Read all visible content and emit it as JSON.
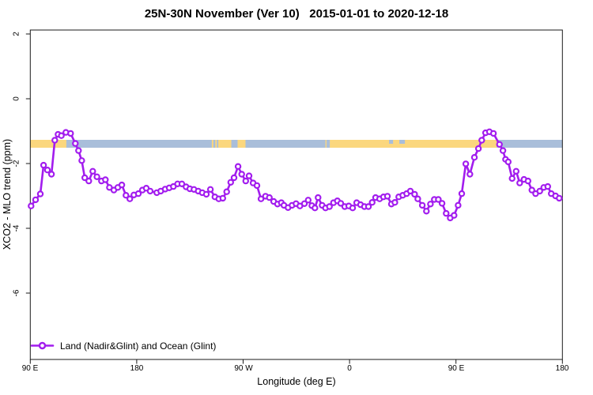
{
  "title": "25N-30N November (Ver 10)   2015-01-01 to 2020-12-18",
  "chart_data": {
    "type": "line",
    "title": "25N-30N November (Ver 10)   2015-01-01 to 2020-12-18",
    "xlabel": "Longitude (deg E)",
    "ylabel": "XCO2 - MLO trend (ppm)",
    "xlim": [
      90,
      540
    ],
    "ylim": [
      -8,
      2.1
    ],
    "grid": false,
    "x_ticks": [
      {
        "lon": 90,
        "label": "90 E"
      },
      {
        "lon": 180,
        "label": "180"
      },
      {
        "lon": 270,
        "label": "90 W"
      },
      {
        "lon": 360,
        "label": "0"
      },
      {
        "lon": 450,
        "label": "90 E"
      },
      {
        "lon": 540,
        "label": "180"
      }
    ],
    "y_ticks": [
      {
        "value": 2,
        "label": "2"
      },
      {
        "value": 0,
        "label": "0"
      },
      {
        "value": -2,
        "label": "-2"
      },
      {
        "value": -4,
        "label": "-4"
      },
      {
        "value": -6,
        "label": "-6"
      }
    ],
    "legend": {
      "label": "Land (Nadir&Glint) and Ocean (Glint)",
      "position": "bottom-left"
    },
    "map_strip": {
      "meaning": "land/ocean map band along 25N-30N",
      "center_ppm": -1.39,
      "ocean_color": "#A9BEDA",
      "land_color": "#FBD77E",
      "ocean_extent_lon": [
        90,
        540
      ],
      "land_segments_lon": [
        [
          90,
          120.5
        ],
        [
          243.5,
          244.8
        ],
        [
          246.5,
          247.8
        ],
        [
          249,
          260
        ],
        [
          265.3,
          272
        ],
        [
          339.6,
          340.5
        ],
        [
          343.3,
          484.4
        ]
      ],
      "ocean_notches_lon": [
        [
          393.4,
          396.8
        ],
        [
          402.1,
          406.8
        ]
      ]
    },
    "series": [
      {
        "name": "Land (Nadir&Glint) and Ocean (Glint)",
        "color": "#A21CEE",
        "marker": "open-circle",
        "x": [
          90.7,
          94.5,
          98.5,
          101.2,
          104.5,
          107.9,
          110.7,
          113.5,
          116.3,
          120.1,
          124.1,
          128.1,
          130.8,
          133.5,
          136.1,
          139.5,
          142.8,
          146.4,
          150.2,
          153.5,
          156.9,
          160.7,
          164.0,
          167.4,
          170.9,
          174.2,
          177.6,
          181.4,
          184.8,
          188.1,
          191.4,
          197.0,
          200.3,
          204.1,
          207.5,
          211.0,
          214.6,
          218.2,
          221.7,
          224.9,
          228.4,
          232.0,
          235.4,
          238.9,
          242.3,
          246.1,
          249.4,
          252.8,
          256.1,
          259.5,
          262.3,
          265.7,
          268.8,
          272.2,
          275.0,
          278.4,
          281.7,
          285.1,
          288.9,
          292.2,
          295.8,
          299.1,
          302.3,
          304.5,
          308.0,
          311.4,
          314.7,
          318.0,
          321.8,
          325.0,
          328.1,
          330.7,
          333.4,
          336.8,
          339.7,
          343.0,
          346.4,
          349.7,
          352.6,
          355.9,
          359.3,
          362.6,
          366.0,
          369.3,
          372.6,
          376.0,
          379.1,
          382.0,
          385.4,
          388.7,
          392.0,
          395.4,
          398.3,
          401.6,
          405.0,
          408.3,
          411.4,
          415.0,
          417.7,
          421.5,
          425.0,
          428.4,
          431.7,
          435.1,
          438.2,
          441.7,
          445.1,
          448.4,
          451.8,
          454.9,
          458.3,
          461.8,
          465.6,
          469.0,
          471.8,
          475.0,
          478.3,
          481.7,
          486.8,
          489.7,
          491.9,
          494.2,
          497.5,
          500.9,
          503.9,
          507.5,
          510.9,
          514.2,
          517.3,
          520.9,
          524.2,
          527.6,
          530.6,
          534.2,
          537.3
        ],
        "y": [
          -3.31,
          -3.12,
          -2.94,
          -2.05,
          -2.2,
          -2.33,
          -1.28,
          -1.1,
          -1.14,
          -1.04,
          -1.07,
          -1.38,
          -1.6,
          -1.91,
          -2.44,
          -2.54,
          -2.24,
          -2.41,
          -2.54,
          -2.5,
          -2.74,
          -2.82,
          -2.74,
          -2.66,
          -2.98,
          -3.09,
          -2.97,
          -2.93,
          -2.82,
          -2.76,
          -2.85,
          -2.9,
          -2.85,
          -2.79,
          -2.75,
          -2.71,
          -2.63,
          -2.63,
          -2.72,
          -2.78,
          -2.8,
          -2.85,
          -2.9,
          -2.95,
          -2.8,
          -3.03,
          -3.09,
          -3.07,
          -2.87,
          -2.58,
          -2.44,
          -2.09,
          -2.33,
          -2.54,
          -2.38,
          -2.6,
          -2.68,
          -3.09,
          -3.01,
          -3.05,
          -3.17,
          -3.25,
          -3.21,
          -3.29,
          -3.36,
          -3.29,
          -3.24,
          -3.31,
          -3.24,
          -3.13,
          -3.3,
          -3.37,
          -3.05,
          -3.29,
          -3.37,
          -3.33,
          -3.21,
          -3.15,
          -3.23,
          -3.33,
          -3.31,
          -3.37,
          -3.21,
          -3.27,
          -3.33,
          -3.33,
          -3.2,
          -3.05,
          -3.09,
          -3.03,
          -3.01,
          -3.25,
          -3.2,
          -3.03,
          -2.98,
          -2.93,
          -2.85,
          -2.95,
          -3.09,
          -3.29,
          -3.47,
          -3.25,
          -3.11,
          -3.11,
          -3.23,
          -3.54,
          -3.68,
          -3.6,
          -3.29,
          -2.93,
          -2.01,
          -2.33,
          -1.81,
          -1.54,
          -1.28,
          -1.05,
          -1.02,
          -1.07,
          -1.41,
          -1.6,
          -1.87,
          -1.95,
          -2.46,
          -2.24,
          -2.6,
          -2.49,
          -2.54,
          -2.82,
          -2.93,
          -2.85,
          -2.74,
          -2.71,
          -2.93,
          -3.0,
          -3.07
        ]
      }
    ]
  },
  "colors": {
    "series": "#A21CEE",
    "land": "#FBD77E",
    "ocean": "#A9BEDA",
    "axis": "#1a1a1a"
  }
}
